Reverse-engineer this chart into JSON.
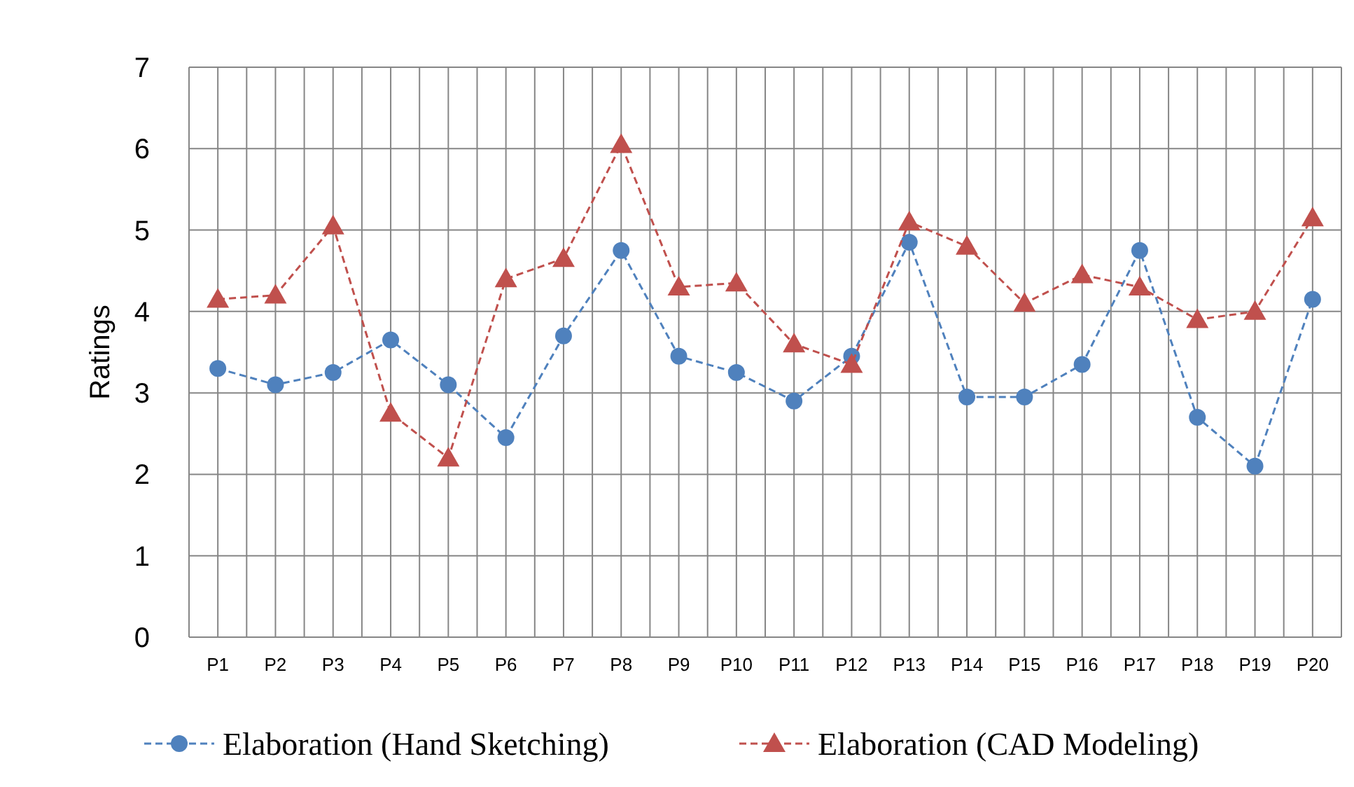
{
  "chart_data": {
    "type": "line",
    "ylabel": "Ratings",
    "categories": [
      "P1",
      "P2",
      "P3",
      "P4",
      "P5",
      "P6",
      "P7",
      "P8",
      "P9",
      "P10",
      "P11",
      "P12",
      "P13",
      "P14",
      "P15",
      "P16",
      "P17",
      "P18",
      "P19",
      "P20"
    ],
    "series": [
      {
        "name": "Elaboration (Hand Sketching)",
        "color": "#4f81bd",
        "marker": "circle",
        "values": [
          3.3,
          3.1,
          3.25,
          3.65,
          3.1,
          2.45,
          3.7,
          4.75,
          3.45,
          3.25,
          2.9,
          3.45,
          4.85,
          2.95,
          2.95,
          3.35,
          4.75,
          2.7,
          2.1,
          4.15
        ]
      },
      {
        "name": "Elaboration (CAD Modeling)",
        "color": "#c0504d",
        "marker": "triangle",
        "values": [
          4.15,
          4.2,
          5.05,
          2.75,
          2.2,
          4.4,
          4.65,
          6.05,
          4.3,
          4.35,
          3.6,
          3.35,
          5.1,
          4.8,
          4.1,
          4.45,
          4.3,
          3.9,
          4.0,
          5.15
        ]
      }
    ],
    "ylim": [
      0,
      7
    ],
    "yticks": [
      0,
      1,
      2,
      3,
      4,
      5,
      6,
      7
    ],
    "grid": true,
    "legend": "bottom",
    "line_style": "dashed"
  }
}
